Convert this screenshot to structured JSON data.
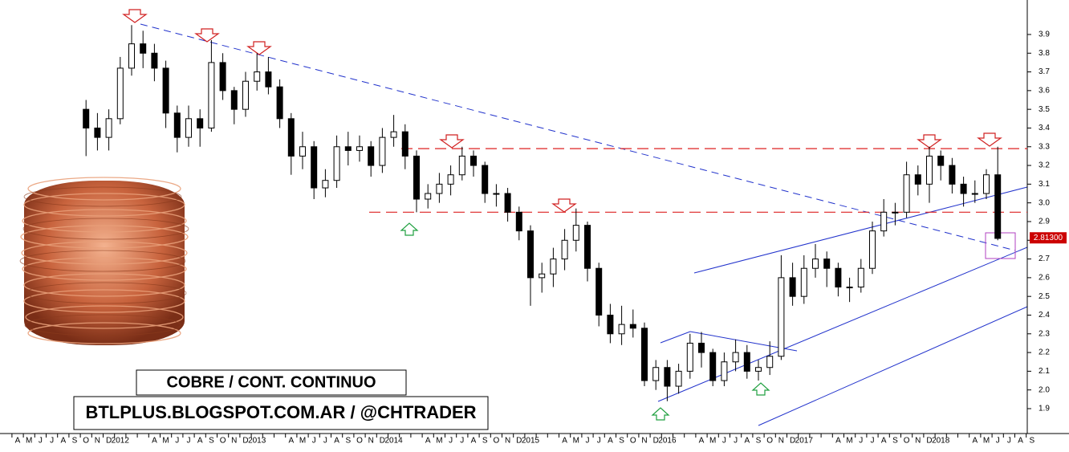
{
  "chart_data": {
    "type": "candlestick",
    "title": "COBRE / CONT. CONTINUO",
    "subtitle": "BTLPLUS.BLOGSPOT.COM.AR / @CHTRADER",
    "categories": [
      "A",
      "M",
      "J",
      "J",
      "A",
      "S",
      "O",
      "N",
      "D",
      "2012",
      null,
      null,
      "A",
      "M",
      "J",
      "J",
      "A",
      "S",
      "O",
      "N",
      "D",
      "2013",
      null,
      null,
      "A",
      "M",
      "J",
      "J",
      "A",
      "S",
      "O",
      "N",
      "D",
      "2014",
      null,
      null,
      "A",
      "M",
      "J",
      "J",
      "A",
      "S",
      "O",
      "N",
      "D",
      "2015",
      null,
      null,
      "A",
      "M",
      "J",
      "J",
      "A",
      "S",
      "O",
      "N",
      "D",
      "2016",
      null,
      null,
      "A",
      "M",
      "J",
      "J",
      "A",
      "S",
      "O",
      "N",
      "D",
      "2017",
      null,
      null,
      "A",
      "M",
      "J",
      "J",
      "A",
      "S",
      "O",
      "N",
      "D",
      "2018",
      null,
      null,
      "A",
      "M",
      "J",
      "J",
      "A",
      "S"
    ],
    "open": [
      null,
      null,
      null,
      null,
      null,
      null,
      3.5,
      3.4,
      3.35,
      3.45,
      3.72,
      3.85,
      3.8,
      3.72,
      3.48,
      3.35,
      3.45,
      3.4,
      3.75,
      3.6,
      3.5,
      3.65,
      3.7,
      3.62,
      3.45,
      3.25,
      3.3,
      3.08,
      3.12,
      3.3,
      3.28,
      3.3,
      3.2,
      3.35,
      3.38,
      3.25,
      3.02,
      3.05,
      3.1,
      3.15,
      3.25,
      3.2,
      3.05,
      3.05,
      2.95,
      2.85,
      2.6,
      2.62,
      2.7,
      2.8,
      2.88,
      2.65,
      2.4,
      2.3,
      2.35,
      2.33,
      2.05,
      2.12,
      2.02,
      2.1,
      2.25,
      2.2,
      2.05,
      2.15,
      2.2,
      2.1,
      2.12,
      2.18,
      2.6,
      2.5,
      2.65,
      2.7,
      2.65,
      2.55,
      2.55,
      2.65,
      2.85,
      2.95,
      2.95,
      3.15,
      3.1,
      3.25,
      3.2,
      3.1,
      3.05,
      3.05,
      3.15,
      null,
      null,
      null
    ],
    "high": [
      null,
      null,
      null,
      null,
      null,
      null,
      3.55,
      3.48,
      3.5,
      3.78,
      3.95,
      3.92,
      3.85,
      3.76,
      3.52,
      3.52,
      3.5,
      3.87,
      3.8,
      3.62,
      3.7,
      3.8,
      3.78,
      3.66,
      3.48,
      3.38,
      3.33,
      3.18,
      3.36,
      3.38,
      3.36,
      3.33,
      3.4,
      3.47,
      3.42,
      3.28,
      3.1,
      3.16,
      3.2,
      3.3,
      3.28,
      3.22,
      3.1,
      3.08,
      2.98,
      2.88,
      2.68,
      2.76,
      2.86,
      2.97,
      2.9,
      2.68,
      2.46,
      2.45,
      2.43,
      2.36,
      2.16,
      2.16,
      2.14,
      2.3,
      2.31,
      2.22,
      2.2,
      2.27,
      2.24,
      2.16,
      2.26,
      2.72,
      2.68,
      2.72,
      2.78,
      2.74,
      2.68,
      2.6,
      2.7,
      2.9,
      3.02,
      3.0,
      3.22,
      3.2,
      3.3,
      3.28,
      3.24,
      3.14,
      3.12,
      3.18,
      3.3,
      null,
      null,
      null
    ],
    "low": [
      null,
      null,
      null,
      null,
      null,
      null,
      3.25,
      3.28,
      3.28,
      3.42,
      3.68,
      3.72,
      3.65,
      3.4,
      3.27,
      3.3,
      3.3,
      3.38,
      3.55,
      3.42,
      3.46,
      3.6,
      3.58,
      3.4,
      3.15,
      3.18,
      3.02,
      3.03,
      3.08,
      3.2,
      3.22,
      3.14,
      3.16,
      3.3,
      3.18,
      2.95,
      2.97,
      3.0,
      3.04,
      3.12,
      3.14,
      3.0,
      2.98,
      2.9,
      2.8,
      2.45,
      2.52,
      2.55,
      2.64,
      2.74,
      2.58,
      2.34,
      2.25,
      2.24,
      2.28,
      2.02,
      2.0,
      1.94,
      1.98,
      2.06,
      2.12,
      2.02,
      2.02,
      2.1,
      2.06,
      2.05,
      2.08,
      2.16,
      2.45,
      2.46,
      2.6,
      2.55,
      2.5,
      2.47,
      2.52,
      2.62,
      2.82,
      2.88,
      2.92,
      3.04,
      3.0,
      3.12,
      3.05,
      2.98,
      3.0,
      3.02,
      2.8,
      null,
      null,
      null
    ],
    "close": [
      null,
      null,
      null,
      null,
      null,
      null,
      3.4,
      3.35,
      3.45,
      3.72,
      3.85,
      3.8,
      3.72,
      3.48,
      3.35,
      3.45,
      3.4,
      3.75,
      3.6,
      3.5,
      3.65,
      3.7,
      3.62,
      3.45,
      3.25,
      3.3,
      3.08,
      3.12,
      3.3,
      3.28,
      3.3,
      3.2,
      3.35,
      3.38,
      3.25,
      3.02,
      3.05,
      3.1,
      3.15,
      3.25,
      3.2,
      3.05,
      3.05,
      2.95,
      2.85,
      2.6,
      2.62,
      2.7,
      2.8,
      2.88,
      2.65,
      2.4,
      2.3,
      2.35,
      2.33,
      2.05,
      2.12,
      2.02,
      2.1,
      2.25,
      2.2,
      2.05,
      2.15,
      2.2,
      2.1,
      2.12,
      2.18,
      2.6,
      2.5,
      2.65,
      2.7,
      2.65,
      2.55,
      2.55,
      2.65,
      2.85,
      2.95,
      2.95,
      3.15,
      3.1,
      3.25,
      3.2,
      3.1,
      3.05,
      3.05,
      3.15,
      2.81,
      null,
      null,
      null
    ],
    "last_price": {
      "value": 2.813,
      "label": "2.81300"
    },
    "levels": [
      3.29,
      2.95
    ],
    "level_color": "#dd2222",
    "ylim": [
      1.8,
      4.05
    ],
    "yticks": [
      1.9,
      {
        "value": 2,
        "label": "2.0"
      },
      2.1,
      2.2,
      2.3,
      2.4,
      2.5,
      2.6,
      2.7,
      2.8,
      2.9,
      {
        "value": 3,
        "label": "3.0"
      },
      3.1,
      3.2,
      3.3,
      3.4,
      3.5,
      3.6,
      3.7,
      3.8,
      3.9
    ],
    "up_color": "#ffffff",
    "down_color": "#000000"
  }
}
